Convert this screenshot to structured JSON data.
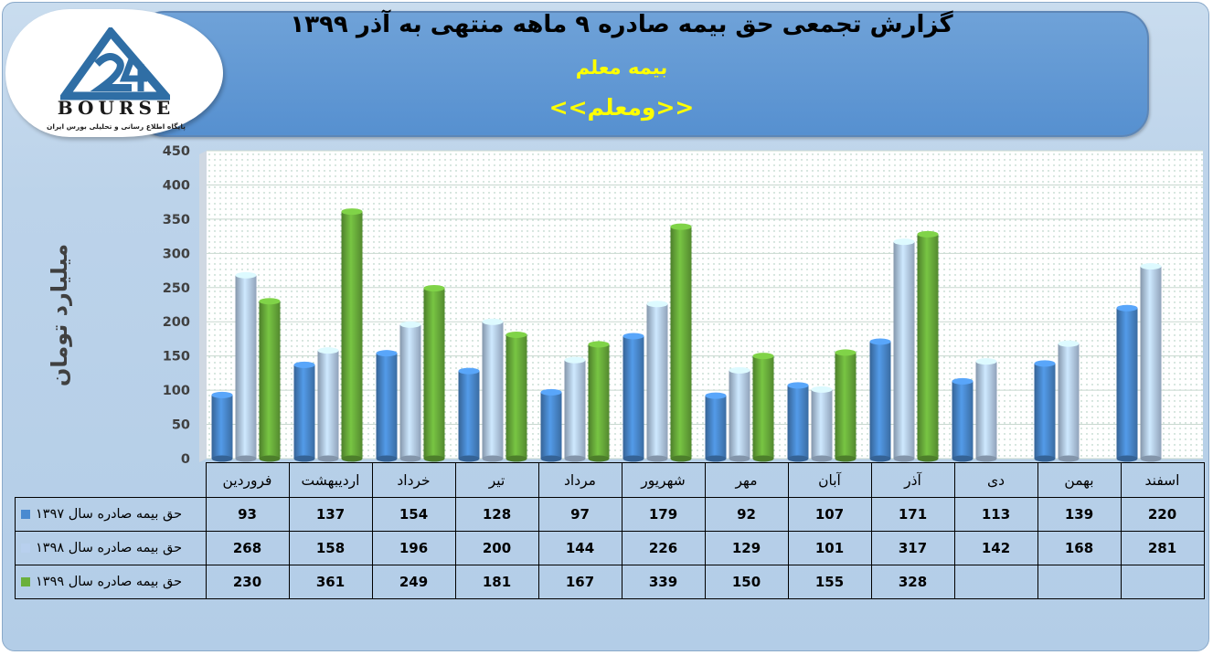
{
  "header": {
    "title": "گزارش تجمعی حق بیمه صادره ۹ ماهه منتهی به آذر ۱۳۹۹",
    "subtitle": "بیمه معلم",
    "symbol": "<<ومعلم>>"
  },
  "logo": {
    "word": "BOURSE",
    "caption": "پایگاه اطلاع رسانی و تحلیلی بورس ایران"
  },
  "colors": {
    "series_1397": "#4a8ad0",
    "series_1398": "#b8d0ee",
    "series_1399": "#6bb03c",
    "header_bg": "#5e98d5",
    "title_accent": "#ffff00"
  },
  "chart_data": {
    "type": "bar",
    "title": "گزارش تجمعی حق بیمه صادره ۹ ماهه منتهی به آذر ۱۳۹۹",
    "subtitle": "بیمه معلم",
    "ylabel": "میلیارد تومان",
    "xlabel": "",
    "ylim": [
      0,
      450
    ],
    "yticks": [
      0,
      50,
      100,
      150,
      200,
      250,
      300,
      350,
      400,
      450
    ],
    "grid": true,
    "legend": "table-left",
    "categories": [
      "فروردین",
      "اردیبهشت",
      "خرداد",
      "تیر",
      "مرداد",
      "شهریور",
      "مهر",
      "آبان",
      "آذر",
      "دی",
      "بهمن",
      "اسفند"
    ],
    "series": [
      {
        "name": "حق بیمه صادره سال ۱۳۹۷",
        "color": "#4a8ad0",
        "values": [
          93,
          137,
          154,
          128,
          97,
          179,
          92,
          107,
          171,
          113,
          139,
          220
        ]
      },
      {
        "name": "حق بیمه صادره سال ۱۳۹۸",
        "color": "#b8d0ee",
        "values": [
          268,
          158,
          196,
          200,
          144,
          226,
          129,
          101,
          317,
          142,
          168,
          281
        ]
      },
      {
        "name": "حق بیمه صادره سال ۱۳۹۹",
        "color": "#6bb03c",
        "values": [
          230,
          361,
          249,
          181,
          167,
          339,
          150,
          155,
          328,
          null,
          null,
          null
        ]
      }
    ]
  }
}
